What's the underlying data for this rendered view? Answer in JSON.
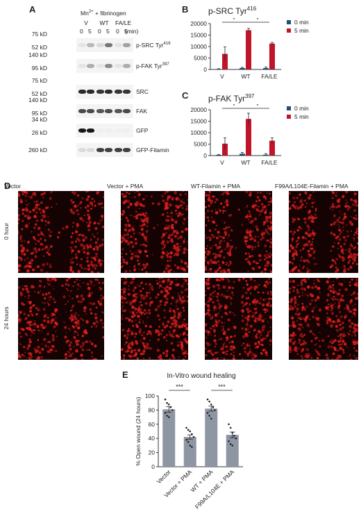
{
  "panel_a": {
    "label": "A",
    "header_treatment": "Mn",
    "header_super": "2+",
    "header_rest": " + fibrinogen",
    "groups": [
      "V",
      "WT",
      "FA/LE"
    ],
    "times": [
      "0",
      "5",
      "0",
      "5",
      "0",
      "5"
    ],
    "time_unit": "(min)",
    "blots": [
      {
        "name": "p-SRC Tyr",
        "super": "416",
        "markers": [
          "75 kD",
          "52 kD"
        ],
        "intensity": [
          0.05,
          0.25,
          0.1,
          0.55,
          0.05,
          0.35
        ]
      },
      {
        "name": "p-FAK Tyr",
        "super": "397",
        "markers": [
          "140 kD",
          "95 kD"
        ],
        "intensity": [
          0.05,
          0.3,
          0.05,
          0.45,
          0.05,
          0.3
        ]
      },
      {
        "name": "SRC",
        "super": "",
        "markers": [
          "75 kD",
          "52 kD"
        ],
        "intensity": [
          0.9,
          0.9,
          0.85,
          0.9,
          0.85,
          0.85
        ]
      },
      {
        "name": "FAK",
        "super": "",
        "markers": [
          "140 kD",
          "95 kD"
        ],
        "intensity": [
          0.75,
          0.75,
          0.7,
          0.75,
          0.7,
          0.75
        ]
      },
      {
        "name": "GFP",
        "super": "",
        "markers": [
          "34 kD",
          "26 kD"
        ],
        "intensity": [
          0.98,
          0.98,
          0.0,
          0.0,
          0.0,
          0.0
        ]
      },
      {
        "name": "GFP-Filamin",
        "super": "",
        "markers": [
          "260 kD"
        ],
        "intensity": [
          0.1,
          0.1,
          0.8,
          0.8,
          0.8,
          0.8
        ]
      }
    ]
  },
  "panel_b": {
    "label": "B",
    "title": "p-SRC Tyr",
    "title_super": "416"
  },
  "panel_c": {
    "label": "C",
    "title": "p-FAK Tyr",
    "title_super": "397"
  },
  "panel_d": {
    "label": "D",
    "columns": [
      "Vector",
      "Vector + PMA",
      "WT-Filamin + PMA",
      "F99A/L104E-Filamin + PMA"
    ],
    "rows": [
      "0 hour",
      "24 hours"
    ],
    "gap_fraction_0h": [
      0.22,
      0.2,
      0.2,
      0.2
    ],
    "gap_fraction_24h": [
      0.1,
      0.05,
      0.1,
      0.09
    ]
  },
  "panel_e": {
    "label": "E"
  },
  "colors": {
    "zero_min": "#1f4e79",
    "five_min": "#c0142b",
    "bar_gray": "#8e96a3",
    "cells": "#d81e1e"
  },
  "chart_data": [
    {
      "type": "bar",
      "title": "p-SRC Tyr416",
      "categories": [
        "V",
        "WT",
        "FA/LE"
      ],
      "series": [
        {
          "name": "0 min",
          "values": [
            200,
            600,
            600
          ],
          "errors": [
            150,
            300,
            500
          ]
        },
        {
          "name": "5 min",
          "values": [
            6800,
            17100,
            11300
          ],
          "errors": [
            3000,
            800,
            500
          ]
        }
      ],
      "ylim": [
        0,
        20000
      ],
      "yticks": [
        0,
        5000,
        10000,
        15000,
        20000
      ],
      "significance": [
        {
          "from": 0,
          "to": 1,
          "label": "*"
        },
        {
          "from": 1,
          "to": 2,
          "label": "*"
        }
      ],
      "legend_position": "right"
    },
    {
      "type": "bar",
      "title": "p-FAK Tyr397",
      "categories": [
        "V",
        "WT",
        "FA/LE"
      ],
      "series": [
        {
          "name": "0 min",
          "values": [
            300,
            800,
            400
          ],
          "errors": [
            200,
            600,
            500
          ]
        },
        {
          "name": "5 min",
          "values": [
            5200,
            16000,
            6500
          ],
          "errors": [
            2500,
            2500,
            1200
          ]
        }
      ],
      "ylim": [
        0,
        20000
      ],
      "yticks": [
        0,
        5000,
        10000,
        15000,
        20000
      ],
      "significance": [
        {
          "from": 0,
          "to": 1,
          "label": "*"
        },
        {
          "from": 1,
          "to": 2,
          "label": "*"
        }
      ],
      "legend_position": "right"
    },
    {
      "type": "bar",
      "title": "In-Vitro wound healing",
      "ylabel": "% Open wound (24 hours)",
      "categories": [
        "Vector",
        "Vector + PMA",
        "WT + PMA",
        "F99A/L104E + PMA"
      ],
      "values": [
        81,
        42,
        82,
        45
      ],
      "errors": [
        4,
        3,
        3.5,
        4
      ],
      "points": [
        [
          95,
          90,
          88,
          84,
          80,
          76,
          72,
          70
        ],
        [
          55,
          52,
          50,
          46,
          42,
          38,
          35,
          30,
          28
        ],
        [
          95,
          92,
          88,
          84,
          80,
          76,
          72,
          68
        ],
        [
          60,
          55,
          48,
          44,
          40,
          36,
          32,
          30
        ]
      ],
      "ylim": [
        0,
        100
      ],
      "yticks": [
        0,
        20,
        40,
        60,
        80,
        100
      ],
      "significance": [
        {
          "from": 0,
          "to": 1,
          "label": "***"
        },
        {
          "from": 2,
          "to": 3,
          "label": "***"
        }
      ]
    }
  ]
}
